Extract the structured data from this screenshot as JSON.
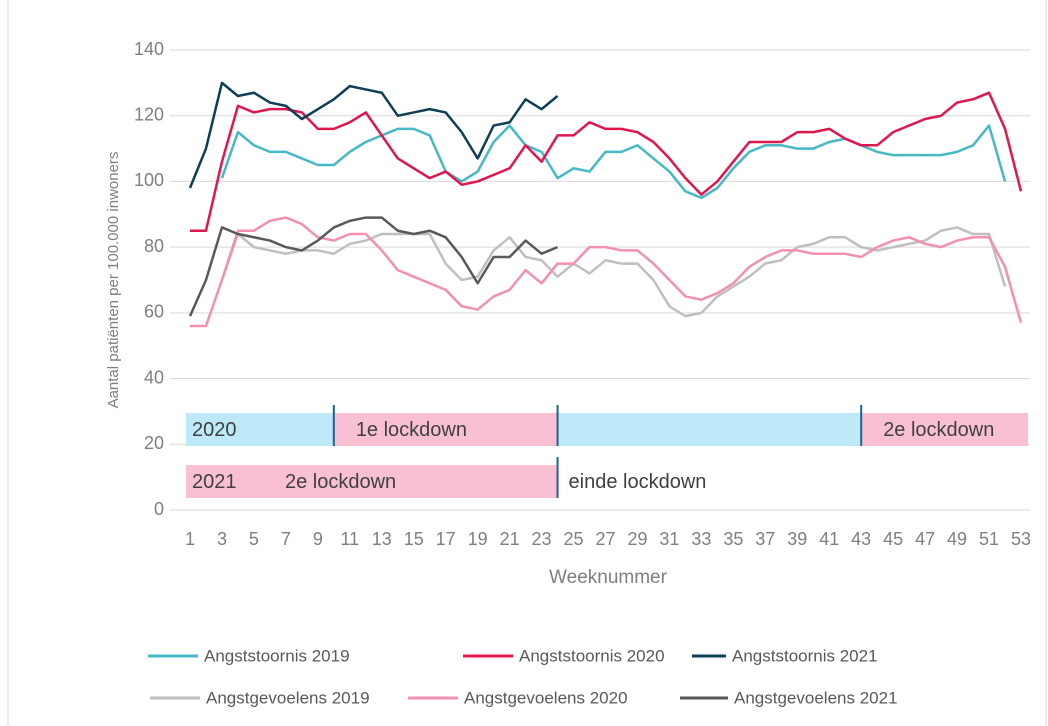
{
  "chart_data": {
    "type": "line",
    "y_label": "Aantal patiënten per 100.000 inwoners",
    "x_label": "Weeknummer",
    "x": [
      1,
      2,
      3,
      4,
      5,
      6,
      7,
      8,
      9,
      10,
      11,
      12,
      13,
      14,
      15,
      16,
      17,
      18,
      19,
      20,
      21,
      22,
      23,
      24,
      25,
      26,
      27,
      28,
      29,
      30,
      31,
      32,
      33,
      34,
      35,
      36,
      37,
      38,
      39,
      40,
      41,
      42,
      43,
      44,
      45,
      46,
      47,
      48,
      49,
      50,
      51,
      52,
      53
    ],
    "xlim": [
      1,
      53
    ],
    "xticks": [
      1,
      3,
      5,
      7,
      9,
      11,
      13,
      15,
      17,
      19,
      21,
      23,
      25,
      27,
      29,
      31,
      33,
      35,
      37,
      39,
      41,
      43,
      45,
      47,
      49,
      51,
      53
    ],
    "ylim": [
      0,
      140
    ],
    "yticks": [
      0,
      20,
      40,
      60,
      80,
      100,
      120,
      140
    ],
    "grid": true,
    "series": [
      {
        "name": "Angststoornis 2019",
        "color": "#45b9c4",
        "values": [
          null,
          null,
          101,
          115,
          111,
          109,
          109,
          107,
          105,
          105,
          109,
          112,
          114,
          116,
          116,
          114,
          103,
          100,
          103,
          112,
          117,
          111,
          109,
          101,
          104,
          103,
          109,
          109,
          111,
          107,
          103,
          97,
          95,
          98,
          104,
          109,
          111,
          111,
          110,
          110,
          112,
          113,
          111,
          109,
          108,
          108,
          108,
          108,
          109,
          111,
          117,
          100,
          null
        ]
      },
      {
        "name": "Angststoornis 2020",
        "color": "#e0174f",
        "values": [
          85,
          85,
          106,
          123,
          121,
          122,
          122,
          121,
          116,
          116,
          118,
          121,
          114,
          107,
          104,
          101,
          103,
          99,
          100,
          102,
          104,
          111,
          106,
          114,
          114,
          118,
          116,
          116,
          115,
          112,
          107,
          101,
          96,
          100,
          106,
          112,
          112,
          112,
          115,
          115,
          116,
          113,
          111,
          111,
          115,
          117,
          119,
          120,
          124,
          125,
          127,
          116,
          97
        ]
      },
      {
        "name": "Angststoornis 2021",
        "color": "#0f3e57",
        "values": [
          98,
          110,
          130,
          126,
          127,
          124,
          123,
          119,
          122,
          125,
          129,
          128,
          127,
          120,
          121,
          122,
          121,
          115,
          107,
          117,
          118,
          125,
          122,
          126,
          null,
          null,
          null,
          null,
          null,
          null,
          null,
          null,
          null,
          null,
          null,
          null,
          null,
          null,
          null,
          null,
          null,
          null,
          null,
          null,
          null,
          null,
          null,
          null,
          null,
          null,
          null,
          null,
          null
        ]
      },
      {
        "name": "Angstgevoelens 2019",
        "color": "#bfbfbf",
        "values": [
          null,
          null,
          70,
          84,
          80,
          79,
          78,
          79,
          79,
          78,
          81,
          82,
          84,
          84,
          84,
          84,
          75,
          70,
          71,
          79,
          83,
          77,
          76,
          71,
          75,
          72,
          76,
          75,
          75,
          70,
          62,
          59,
          60,
          65,
          68,
          71,
          75,
          76,
          80,
          81,
          83,
          83,
          80,
          79,
          80,
          81,
          82,
          85,
          86,
          84,
          84,
          68,
          null
        ]
      },
      {
        "name": "Angstgevoelens 2020",
        "color": "#f48fb4",
        "values": [
          56,
          56,
          70,
          85,
          85,
          88,
          89,
          87,
          83,
          82,
          84,
          84,
          79,
          73,
          71,
          69,
          67,
          62,
          61,
          65,
          67,
          73,
          69,
          75,
          75,
          80,
          80,
          79,
          79,
          75,
          70,
          65,
          64,
          66,
          69,
          74,
          77,
          79,
          79,
          78,
          78,
          78,
          77,
          80,
          82,
          83,
          81,
          80,
          82,
          83,
          83,
          74,
          57
        ]
      },
      {
        "name": "Angstgevoelens 2021",
        "color": "#595959",
        "values": [
          59,
          70,
          86,
          84,
          83,
          82,
          80,
          79,
          82,
          86,
          88,
          89,
          89,
          85,
          84,
          85,
          83,
          77,
          69,
          77,
          77,
          82,
          78,
          80,
          null,
          null,
          null,
          null,
          null,
          null,
          null,
          null,
          null,
          null,
          null,
          null,
          null,
          null,
          null,
          null,
          null,
          null,
          null,
          null,
          null,
          null,
          null,
          null,
          null,
          null,
          null,
          null,
          null
        ]
      }
    ],
    "lockdown_rows": [
      {
        "label": "2020",
        "segments": [
          {
            "from": 1,
            "to": 10,
            "color": "#bde9f9"
          },
          {
            "from": 10,
            "to": 24,
            "label": "1e lockdown",
            "color": "#f9c0d3"
          },
          {
            "from": 24,
            "to": 43,
            "color": "#bde9f9"
          },
          {
            "from": 43,
            "to": 53,
            "label": "2e lockdown",
            "color": "#f9c0d3"
          }
        ]
      },
      {
        "label": "2021",
        "segments": [
          {
            "from": 1,
            "to": 24,
            "label": "2e lockdown",
            "color": "#f9c0d3"
          },
          {
            "from": 24,
            "to": 53,
            "label": "einde lockdown"
          }
        ]
      }
    ]
  }
}
